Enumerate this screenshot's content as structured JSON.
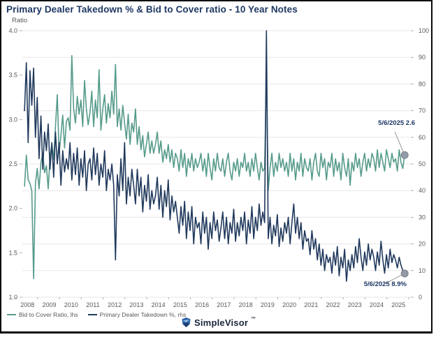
{
  "header": {
    "title": "Primary Dealer Takedown % & Bid to Cover ratio - 10 Year Notes",
    "ratio_label": "Ratio"
  },
  "footer": {
    "brand": "SimpleVisor",
    "trademark": "™"
  },
  "legend": [
    {
      "label": "Bid to Cover Ratio, lhs",
      "color": "#569b8b"
    },
    {
      "label": "Primary Dealer Takedown %, rhs",
      "color": "#20395c"
    }
  ],
  "chart_data": {
    "type": "line",
    "title": "Primary Dealer Takedown % & Bid to Cover ratio - 10 Year Notes",
    "x_domain": [
      2007.8,
      2025.6
    ],
    "x_ticks": [
      2008,
      2009,
      2010,
      2011,
      2012,
      2013,
      2014,
      2015,
      2016,
      2017,
      2018,
      2019,
      2020,
      2021,
      2022,
      2023,
      2024,
      2025
    ],
    "left_axis": {
      "label": "Ratio",
      "min": 1.0,
      "max": 4.0,
      "ticks": [
        4.0,
        3.5,
        3.0,
        2.5,
        2.0,
        1.5,
        1.0
      ]
    },
    "right_axis": {
      "min": 0,
      "max": 100,
      "ticks": [
        100,
        90,
        80,
        70,
        60,
        50,
        40,
        30,
        20,
        10,
        0
      ]
    },
    "grid": "horizontal gridlines at every 10 units of right axis",
    "legend_position": "bottom-left",
    "style": {
      "grid_color": "#e7e7e7",
      "tick_color": "#b0b0b0",
      "marker_fill": "#929ba6",
      "marker_stroke": "#79828d",
      "leader_color": "#a6a6a6"
    },
    "series": [
      {
        "name": "Bid to Cover Ratio, lhs",
        "axis": "left",
        "color": "#569b8b",
        "x_start": 2007.9,
        "x_step_years": 0.083333,
        "values": [
          2.25,
          2.6,
          2.32,
          2.28,
          2.2,
          1.21,
          2.28,
          2.45,
          2.22,
          2.52,
          2.62,
          2.4,
          2.48,
          2.22,
          2.58,
          2.72,
          2.55,
          2.92,
          3.28,
          2.62,
          2.82,
          3.05,
          2.68,
          2.98,
          3.02,
          2.88,
          3.72,
          3.12,
          2.96,
          3.26,
          3.06,
          3.22,
          2.92,
          3.44,
          3.12,
          2.94,
          3.08,
          3.32,
          2.92,
          3.22,
          3.02,
          3.56,
          2.88,
          3.12,
          3.28,
          2.96,
          3.18,
          3.02,
          3.32,
          3.06,
          3.62,
          2.92,
          3.12,
          2.88,
          3.16,
          2.96,
          2.78,
          3.06,
          2.72,
          2.96,
          2.86,
          3.12,
          2.72,
          2.92,
          2.66,
          2.82,
          2.58,
          2.72,
          2.86,
          2.62,
          2.76,
          2.62,
          2.72,
          2.86,
          2.62,
          2.76,
          2.52,
          2.66,
          2.56,
          2.72,
          2.52,
          2.66,
          2.46,
          2.62,
          2.56,
          2.42,
          2.66,
          2.46,
          2.62,
          2.36,
          2.56,
          2.46,
          2.62,
          2.42,
          2.56,
          2.46,
          2.52,
          2.62,
          2.42,
          2.56,
          2.36,
          2.62,
          2.46,
          2.32,
          2.56,
          2.42,
          2.62,
          2.46,
          2.42,
          2.56,
          2.36,
          2.52,
          2.62,
          2.42,
          2.32,
          2.52,
          2.42,
          2.56,
          2.36,
          2.52,
          2.46,
          2.62,
          2.42,
          2.52,
          2.36,
          2.56,
          2.42,
          2.62,
          2.46,
          2.32,
          2.52,
          2.42,
          2.45,
          3.5,
          2.2,
          2.46,
          2.62,
          2.36,
          2.52,
          2.42,
          2.62,
          2.46,
          2.56,
          2.42,
          2.52,
          2.36,
          2.62,
          2.42,
          2.56,
          2.32,
          2.52,
          2.42,
          2.62,
          2.36,
          2.56,
          2.46,
          2.42,
          2.56,
          2.32,
          2.52,
          2.62,
          2.42,
          2.36,
          2.62,
          2.46,
          2.56,
          2.32,
          2.52,
          2.46,
          2.62,
          2.36,
          2.56,
          2.42,
          2.52,
          2.32,
          2.62,
          2.46,
          2.36,
          2.56,
          2.26,
          2.52,
          2.42,
          2.62,
          2.46,
          2.56,
          2.36,
          2.52,
          2.62,
          2.42,
          2.56,
          2.46,
          2.62,
          2.56,
          2.42,
          2.66,
          2.46,
          2.62,
          2.52,
          2.42,
          2.66,
          2.56,
          2.46,
          2.62,
          2.52,
          2.56,
          2.42,
          2.66,
          2.52,
          2.45,
          2.6
        ]
      },
      {
        "name": "Primary Dealer Takedown %, rhs",
        "axis": "right",
        "color": "#20395c",
        "x_start": 2007.9,
        "x_step_years": 0.083333,
        "values": [
          70,
          88,
          58,
          85,
          72,
          86,
          60,
          75,
          52,
          68,
          48,
          62,
          55,
          65,
          48,
          58,
          45,
          62,
          50,
          58,
          42,
          55,
          47,
          52,
          48,
          58,
          44,
          54,
          46,
          56,
          42,
          52,
          45,
          55,
          40,
          50,
          52,
          44,
          56,
          46,
          54,
          42,
          50,
          45,
          55,
          40,
          48,
          44,
          50,
          42,
          14,
          46,
          38,
          52,
          40,
          58,
          35,
          45,
          38,
          48,
          42,
          35,
          48,
          38,
          45,
          32,
          42,
          36,
          46,
          33,
          40,
          35,
          38,
          45,
          33,
          42,
          30,
          40,
          34,
          44,
          29,
          38,
          32,
          36,
          30,
          24,
          34,
          27,
          36,
          22,
          32,
          25,
          34,
          20,
          30,
          26,
          28,
          20,
          32,
          24,
          30,
          18,
          28,
          22,
          32,
          25,
          29,
          21,
          26,
          32,
          22,
          30,
          20,
          28,
          24,
          33,
          21,
          28,
          23,
          30,
          25,
          32,
          20,
          29,
          24,
          34,
          22,
          30,
          25,
          35,
          27,
          32,
          28,
          100,
          22,
          30,
          20,
          27,
          23,
          31,
          19,
          26,
          21,
          28,
          24,
          30,
          20,
          28,
          35,
          24,
          30,
          22,
          28,
          18,
          25,
          21,
          22,
          16,
          25,
          18,
          22,
          14,
          20,
          12,
          18,
          10,
          16,
          13,
          15,
          9,
          17,
          12,
          19,
          8,
          15,
          11,
          18,
          6,
          14,
          10,
          16,
          11,
          19,
          13,
          22,
          15,
          10,
          17,
          12,
          20,
          14,
          18,
          15,
          10,
          17,
          12,
          21,
          14,
          9,
          16,
          11,
          18,
          13,
          16,
          14,
          11,
          15,
          12,
          10,
          8.9
        ]
      }
    ],
    "annotations": [
      {
        "label": "5/6/2025 2.6",
        "series": "Bid to Cover Ratio, lhs",
        "axis": "left",
        "x": 2025.317,
        "value": 2.6,
        "leader_dx": -14,
        "leader_dy": -33
      },
      {
        "label": "5/6/2025 8.9%",
        "series": "Primary Dealer Takedown %, rhs",
        "axis": "right",
        "x": 2025.317,
        "value": 8.9,
        "leader_dx": -29,
        "leader_dy": 15
      }
    ]
  }
}
